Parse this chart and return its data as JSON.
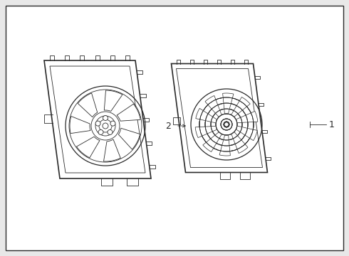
{
  "bg_color": "#e8e8e8",
  "inner_bg_color": "#e8e8e8",
  "outer_box_color": "#ffffff",
  "line_color": "#2a2a2a",
  "label_1": "1",
  "label_2": "2",
  "lw_thin": 0.6,
  "lw_med": 0.9,
  "lw_thick": 1.2
}
